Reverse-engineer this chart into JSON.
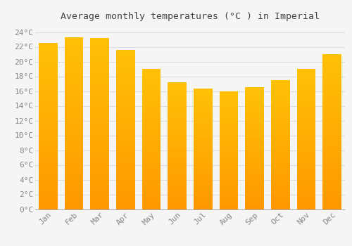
{
  "title": "Average monthly temperatures (°C ) in Imperial",
  "months": [
    "Jan",
    "Feb",
    "Mar",
    "Apr",
    "May",
    "Jun",
    "Jul",
    "Aug",
    "Sep",
    "Oct",
    "Nov",
    "Dec"
  ],
  "values": [
    22.5,
    23.3,
    23.2,
    21.6,
    19.0,
    17.2,
    16.3,
    16.0,
    16.5,
    17.5,
    19.0,
    21.0
  ],
  "bar_color_top": "#FFC107",
  "bar_color_bottom": "#FF9800",
  "background_color": "#F5F5F5",
  "grid_color": "#DDDDDD",
  "text_color": "#888888",
  "title_color": "#444444",
  "ylim": [
    0,
    25
  ],
  "ytick_max": 24,
  "ytick_step": 2,
  "title_fontsize": 9.5,
  "tick_fontsize": 8
}
